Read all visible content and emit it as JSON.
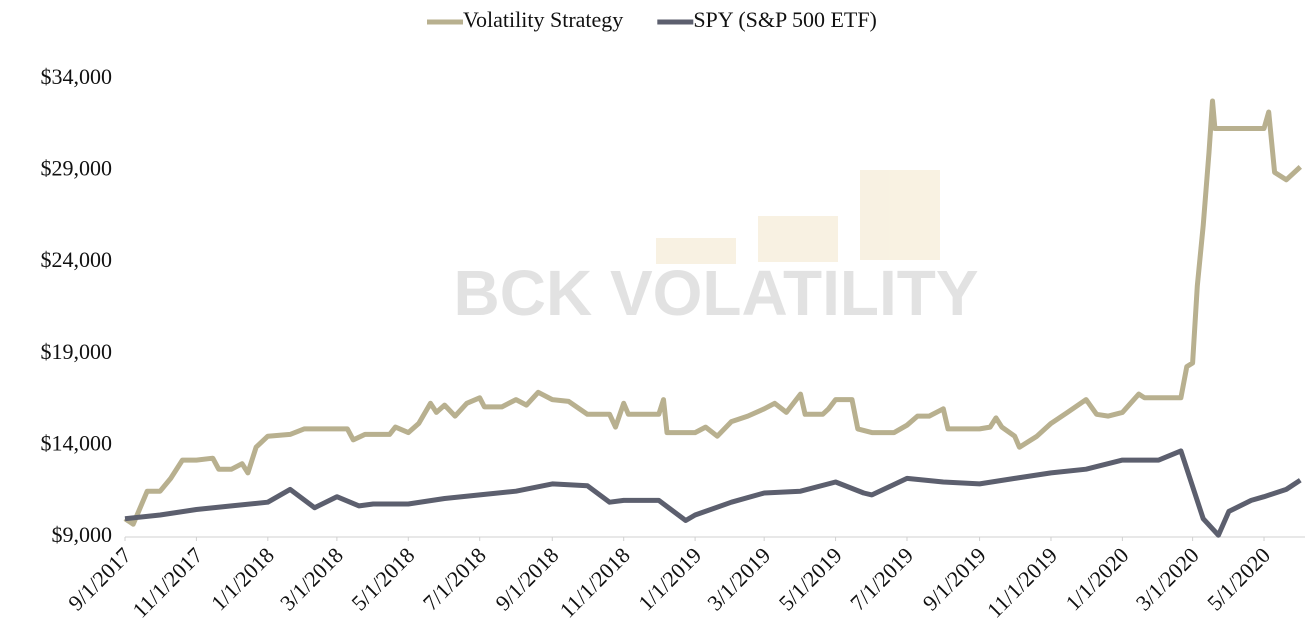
{
  "chart_data": {
    "type": "line",
    "watermark": "BCK VOLATILITY",
    "xlim": [
      "9/1/2017",
      "6/5/2020"
    ],
    "xticks": [
      "9/1/2017",
      "11/1/2017",
      "1/1/2018",
      "3/1/2018",
      "5/1/2018",
      "7/1/2018",
      "9/1/2018",
      "11/1/2018",
      "1/1/2019",
      "3/1/2019",
      "5/1/2019",
      "7/1/2019",
      "9/1/2019",
      "11/1/2019",
      "1/1/2020",
      "3/1/2020",
      "5/1/2020"
    ],
    "ylim": [
      9000,
      34000
    ],
    "yticks": [
      {
        "value": 9000,
        "label": "$9,000"
      },
      {
        "value": 14000,
        "label": "$14,000"
      },
      {
        "value": 19000,
        "label": "$19,000"
      },
      {
        "value": 24000,
        "label": "$24,000"
      },
      {
        "value": 29000,
        "label": "$29,000"
      },
      {
        "value": 34000,
        "label": "$34,000"
      }
    ],
    "legend": "top",
    "series": [
      {
        "name": "Volatility Strategy",
        "color": "#b8b08f",
        "x": [
          "9/1/2017",
          "9/8/2017",
          "9/20/2017",
          "10/1/2017",
          "10/10/2017",
          "10/20/2017",
          "11/1/2017",
          "11/15/2017",
          "11/20/2017",
          "12/1/2017",
          "12/10/2017",
          "12/15/2017",
          "12/22/2017",
          "1/1/2018",
          "1/20/2018",
          "2/1/2018",
          "3/1/2018",
          "3/10/2018",
          "3/15/2018",
          "3/25/2018",
          "4/15/2018",
          "4/20/2018",
          "5/1/2018",
          "5/10/2018",
          "5/20/2018",
          "5/25/2018",
          "6/1/2018",
          "6/10/2018",
          "6/20/2018",
          "7/1/2018",
          "7/5/2018",
          "7/20/2018",
          "8/1/2018",
          "8/10/2018",
          "8/20/2018",
          "9/1/2018",
          "9/15/2018",
          "10/1/2018",
          "10/20/2018",
          "10/25/2018",
          "11/1/2018",
          "11/5/2018",
          "12/1/2018",
          "12/5/2018",
          "12/8/2018",
          "1/1/2019",
          "1/10/2019",
          "1/20/2019",
          "2/1/2019",
          "2/15/2019",
          "3/1/2019",
          "3/10/2019",
          "3/20/2019",
          "4/1/2019",
          "4/5/2019",
          "4/20/2019",
          "4/25/2019",
          "5/1/2019",
          "5/15/2019",
          "5/20/2019",
          "6/1/2019",
          "6/20/2019",
          "7/1/2019",
          "7/10/2019",
          "7/20/2019",
          "8/1/2019",
          "8/5/2019",
          "9/1/2019",
          "9/10/2019",
          "9/15/2019",
          "9/20/2019",
          "10/1/2019",
          "10/5/2019",
          "10/20/2019",
          "11/1/2019",
          "11/15/2019",
          "12/1/2019",
          "12/10/2019",
          "12/20/2019",
          "1/1/2020",
          "1/15/2020",
          "1/20/2020",
          "2/1/2020",
          "2/20/2020",
          "2/25/2020",
          "3/1/2020",
          "3/5/2020",
          "3/10/2020",
          "3/15/2020",
          "3/18/2020",
          "3/20/2020",
          "4/1/2020",
          "4/20/2020",
          "5/1/2020",
          "5/5/2020",
          "5/10/2020",
          "5/20/2020",
          "6/1/2020"
        ],
        "values": [
          10000,
          9700,
          11500,
          11500,
          12200,
          13200,
          13200,
          13300,
          12700,
          12700,
          13000,
          12500,
          13900,
          14500,
          14600,
          14900,
          14900,
          14900,
          14300,
          14600,
          14600,
          15000,
          14700,
          15200,
          16300,
          15800,
          16200,
          15600,
          16300,
          16600,
          16100,
          16100,
          16500,
          16200,
          16900,
          16500,
          16400,
          15700,
          15700,
          15000,
          16300,
          15700,
          15700,
          16500,
          14700,
          14700,
          15000,
          14500,
          15300,
          15600,
          16000,
          16300,
          15800,
          16800,
          15700,
          15700,
          16000,
          16500,
          16500,
          14900,
          14700,
          14700,
          15100,
          15600,
          15600,
          16000,
          14900,
          14900,
          15000,
          15500,
          15000,
          14500,
          13900,
          14500,
          15200,
          15800,
          16500,
          15700,
          15600,
          15800,
          16800,
          16600,
          16600,
          16600,
          18300,
          18500,
          22700,
          26000,
          30000,
          32800,
          31300,
          31300,
          31300,
          31300,
          32200,
          28900,
          28500,
          29200
        ]
      },
      {
        "name": "SPY (S&P 500 ETF)",
        "color": "#5c5f6e",
        "x": [
          "9/1/2017",
          "10/1/2017",
          "11/1/2017",
          "12/1/2017",
          "1/1/2018",
          "1/20/2018",
          "2/10/2018",
          "3/1/2018",
          "3/20/2018",
          "4/1/2018",
          "5/1/2018",
          "6/1/2018",
          "7/1/2018",
          "8/1/2018",
          "9/1/2018",
          "10/1/2018",
          "10/20/2018",
          "11/1/2018",
          "11/20/2018",
          "12/1/2018",
          "12/24/2018",
          "1/1/2019",
          "2/1/2019",
          "3/1/2019",
          "4/1/2019",
          "5/1/2019",
          "5/25/2019",
          "6/1/2019",
          "7/1/2019",
          "8/1/2019",
          "9/1/2019",
          "10/1/2019",
          "11/1/2019",
          "12/1/2019",
          "1/1/2020",
          "2/1/2020",
          "2/20/2020",
          "3/10/2020",
          "3/23/2020",
          "4/1/2020",
          "4/20/2020",
          "5/1/2020",
          "5/20/2020",
          "6/1/2020"
        ],
        "values": [
          10000,
          10200,
          10500,
          10700,
          10900,
          11600,
          10600,
          11200,
          10700,
          10800,
          10800,
          11100,
          11300,
          11500,
          11900,
          11800,
          10900,
          11000,
          11000,
          11000,
          9900,
          10200,
          10900,
          11400,
          11500,
          12000,
          11400,
          11300,
          12200,
          12000,
          11900,
          12200,
          12500,
          12700,
          13200,
          13200,
          13700,
          10000,
          9100,
          10400,
          11000,
          11200,
          11600,
          12100
        ]
      }
    ]
  }
}
